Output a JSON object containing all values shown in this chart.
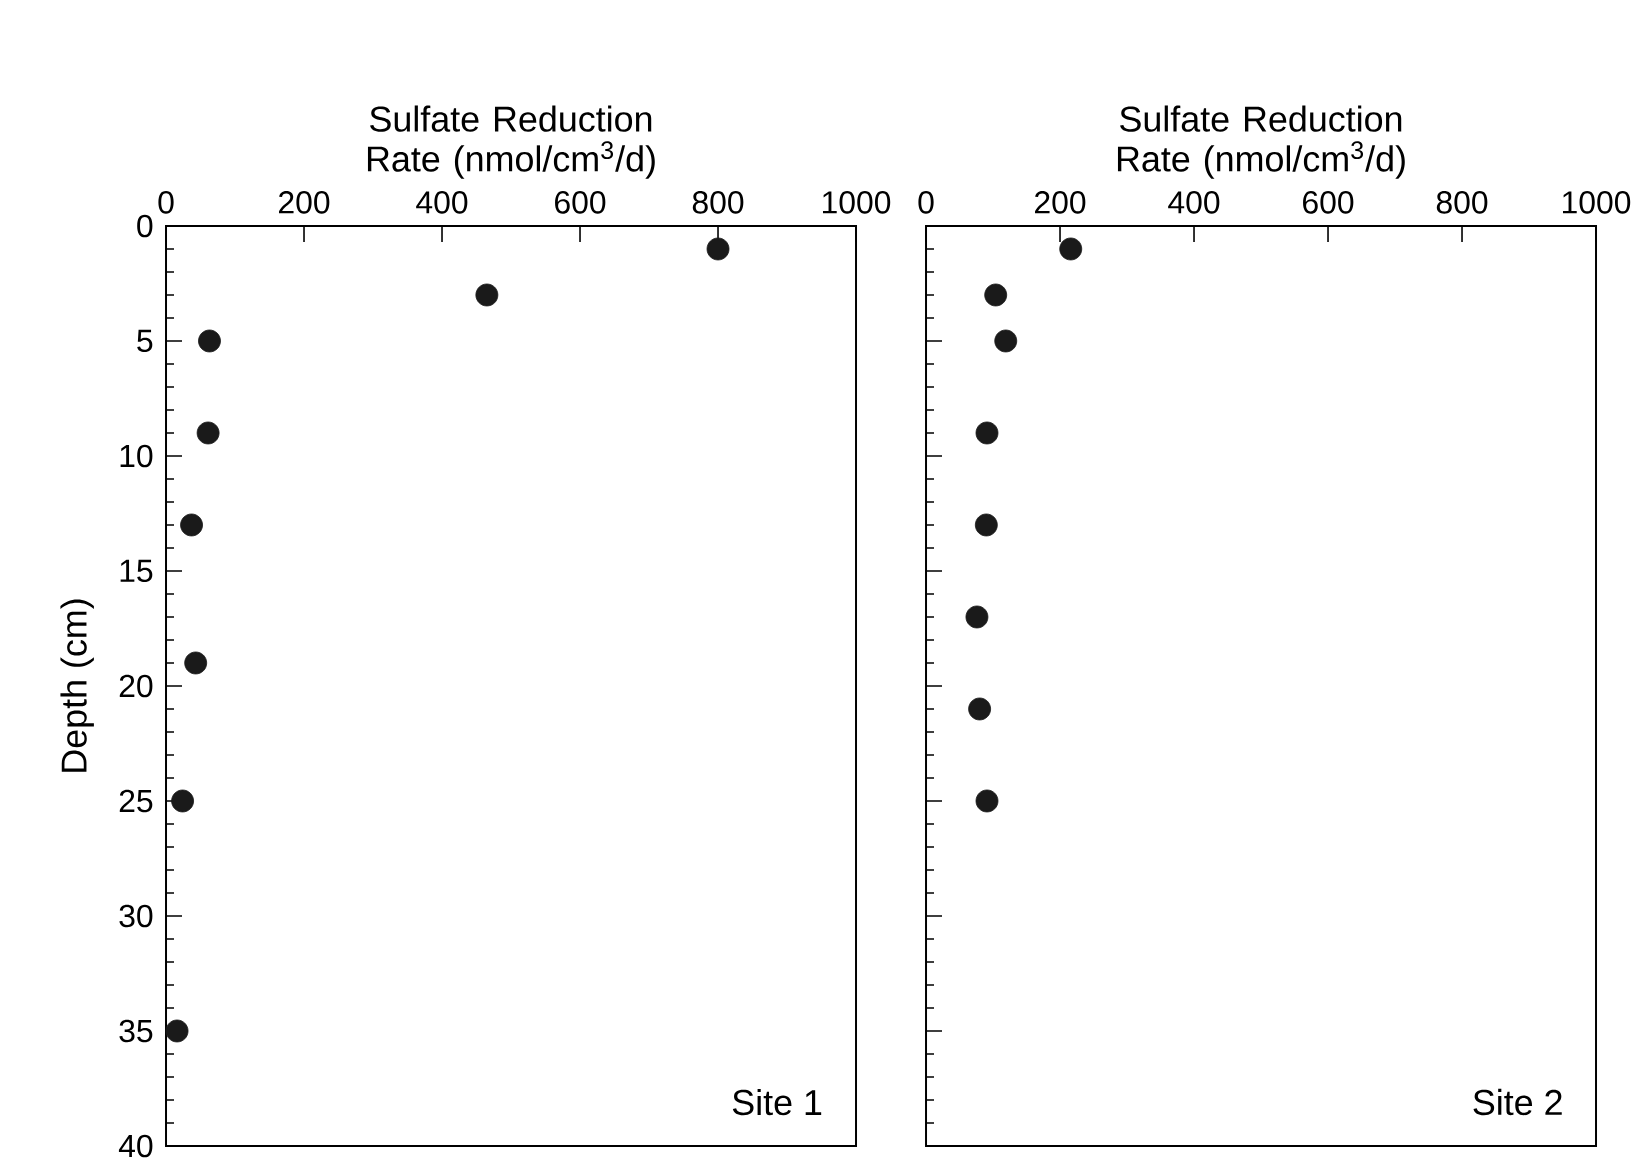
{
  "chart_data": [
    {
      "type": "scatter",
      "xlabel": "Sulfate Reduction Rate (nmol/cm$^{3}$/d)",
      "ylabel": "Depth (cm)",
      "x": [
        800,
        465,
        63,
        61,
        37,
        43,
        24,
        16
      ],
      "values": [
        1,
        3,
        5,
        9,
        13,
        19,
        25,
        35
      ],
      "color": "#1a1a1a",
      "marker": "circle",
      "xlim": [
        0,
        1000
      ],
      "xticks": [
        0,
        200,
        400,
        600,
        800,
        1000
      ],
      "ylim": [
        40,
        0
      ],
      "yticks": [
        0,
        5,
        10,
        15,
        20,
        25,
        30,
        35,
        40
      ],
      "annotations": [
        "Site 1"
      ]
    },
    {
      "type": "scatter",
      "xlabel": "Sulfate Reduction Rate (nmol/cm$^{3}$/d)",
      "x": [
        216,
        104,
        119,
        91,
        90,
        76,
        80,
        91
      ],
      "values": [
        1,
        3,
        5,
        9,
        13,
        17,
        21,
        25
      ],
      "color": "#1a1a1a",
      "marker": "circle",
      "xlim": [
        0,
        1000
      ],
      "xticks": [
        0,
        200,
        400,
        600,
        800,
        1000
      ],
      "ylim": [
        40,
        0
      ],
      "yticks": [
        0,
        5,
        10,
        15,
        20,
        25,
        30,
        35,
        40
      ],
      "tick_labels": "x",
      "annotations": [
        "Site 2"
      ]
    }
  ]
}
